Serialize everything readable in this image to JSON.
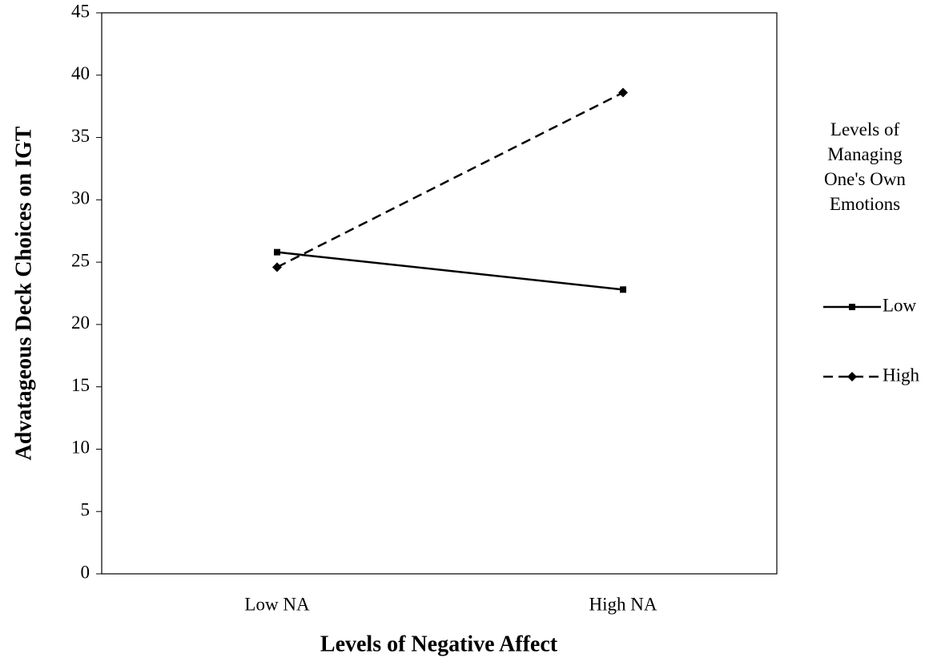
{
  "chart_data": {
    "type": "line",
    "y_label": "Advatageous Deck Choices on IGT",
    "x_label": "Levels of Negative Affect",
    "legend_title": "Levels of Managing One's Own Emotions",
    "categories": [
      "Low NA",
      "High NA"
    ],
    "series": [
      {
        "name": "Low",
        "color": "#000000",
        "values": [
          25.8,
          22.8
        ]
      },
      {
        "name": "High",
        "color": "#000000",
        "values": [
          24.6,
          38.6
        ]
      }
    ],
    "ylim": [
      0,
      45
    ],
    "yticks": [
      0,
      5,
      10,
      15,
      20,
      25,
      30,
      35,
      40,
      45
    ],
    "legend": "right"
  }
}
